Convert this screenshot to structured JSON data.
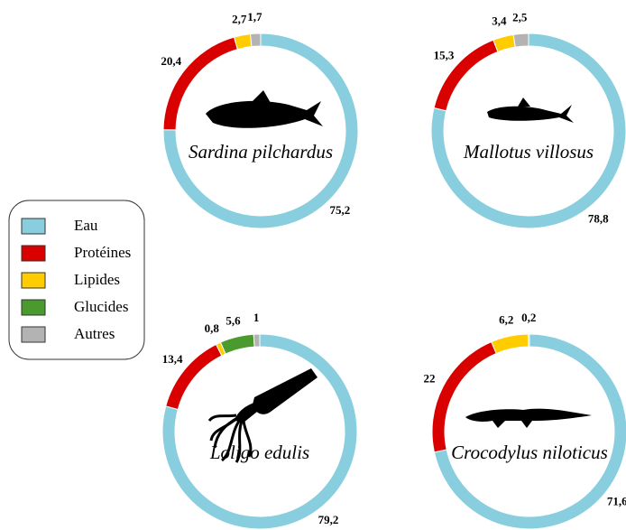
{
  "legend": {
    "categories": [
      "Eau",
      "Protéines",
      "Lipides",
      "Glucides",
      "Autres"
    ],
    "colors": [
      "#89cede",
      "#d90000",
      "#ffcc00",
      "#4a9a2e",
      "#b3b3b3"
    ]
  },
  "chart_data": [
    {
      "type": "donut",
      "title": "Sardina pilchardus",
      "values": [
        75.2,
        20.4,
        2.7,
        null,
        1.7
      ],
      "value_labels": [
        "75,2",
        "20,4",
        "2,7",
        null,
        "1,7"
      ]
    },
    {
      "type": "donut",
      "title": "Mallotus villosus",
      "values": [
        78.8,
        15.3,
        3.4,
        null,
        2.5
      ],
      "value_labels": [
        "78,8",
        "15,3",
        "3,4",
        null,
        "2,5"
      ]
    },
    {
      "type": "donut",
      "title": "Loligo edulis",
      "values": [
        79.2,
        13.4,
        0.8,
        5.6,
        1
      ],
      "value_labels": [
        "79,2",
        "13,4",
        "0,8",
        "5,6",
        "1"
      ]
    },
    {
      "type": "donut",
      "title": "Crocodylus niloticus",
      "values": [
        71.6,
        22,
        6.2,
        null,
        0.2
      ],
      "value_labels": [
        "71,6",
        "22",
        "6,2",
        null,
        "0,2"
      ]
    }
  ]
}
